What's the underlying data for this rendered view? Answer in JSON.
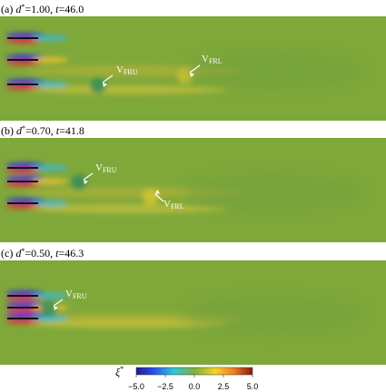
{
  "panels": [
    {
      "label": "(a)",
      "param": "d",
      "param_sup": "*",
      "param_value": "=1.00,",
      "time_symbol": "t",
      "time_value": "=46.0",
      "annotations": [
        {
          "base": "V",
          "sub": "FRU"
        },
        {
          "base": "V",
          "sub": "FRL"
        }
      ]
    },
    {
      "label": "(b)",
      "param": "d",
      "param_sup": "*",
      "param_value": "=0.70,",
      "time_symbol": "t",
      "time_value": "=41.8",
      "annotations": [
        {
          "base": "V",
          "sub": "FRU"
        },
        {
          "base": "V",
          "sub": "FRL"
        }
      ]
    },
    {
      "label": "(c)",
      "param": "d",
      "param_sup": "*",
      "param_value": "=0.50,",
      "time_symbol": "t",
      "time_value": "=46.3",
      "annotations": [
        {
          "base": "V",
          "sub": "FRU"
        }
      ]
    }
  ],
  "colorbar": {
    "symbol": "ξ",
    "symbol_sup": "*",
    "lim": [
      -5,
      5
    ],
    "ticks": [
      {
        "value": -5,
        "label": "−5.0"
      },
      {
        "value": -2.5,
        "label": "−2.5"
      },
      {
        "value": 0,
        "label": "0.0"
      },
      {
        "value": 2.5,
        "label": "2.5"
      },
      {
        "value": 5,
        "label": "5.0"
      }
    ]
  }
}
